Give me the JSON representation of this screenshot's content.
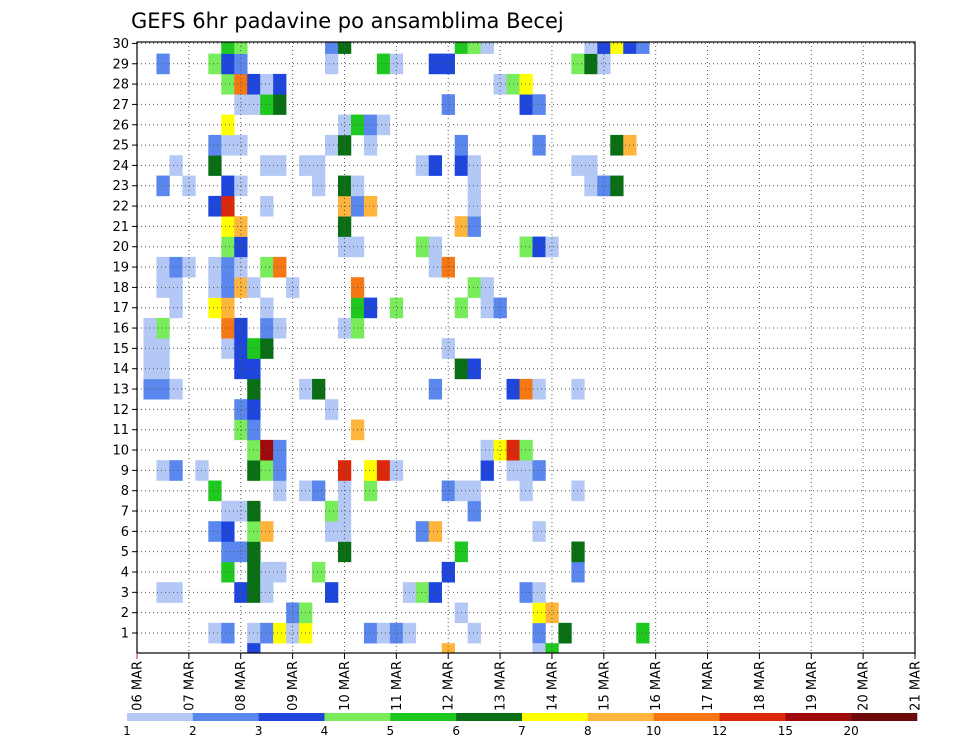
{
  "chart_data": {
    "type": "heatmap",
    "title": "GEFS 6hr padavine po ansamblima Becej",
    "x_ticks": [
      "06 MAR",
      "07 MAR",
      "08 MAR",
      "09 MAR",
      "10 MAR",
      "11 MAR",
      "12 MAR",
      "13 MAR",
      "14 MAR",
      "15 MAR",
      "16 MAR",
      "17 MAR",
      "18 MAR",
      "19 MAR",
      "20 MAR",
      "21 MAR"
    ],
    "y_ticks": [
      "1",
      "2",
      "3",
      "4",
      "5",
      "6",
      "7",
      "8",
      "9",
      "10",
      "11",
      "12",
      "13",
      "14",
      "15",
      "16",
      "17",
      "18",
      "19",
      "20",
      "21",
      "22",
      "23",
      "24",
      "25",
      "26",
      "27",
      "28",
      "29",
      "30"
    ],
    "grid": true,
    "color_scale": {
      "labels": [
        "1",
        "2",
        "3",
        "4",
        "5",
        "6",
        "7",
        "8",
        "10",
        "12",
        "15",
        "20"
      ],
      "colors": [
        "#b4c8f5",
        "#5a87ee",
        "#1e46dc",
        "#78ec5a",
        "#1ec81e",
        "#0a6e14",
        "#ffff00",
        "#ffb43c",
        "#f57814",
        "#dc280a",
        "#a00a0a",
        "#6e0a0a"
      ]
    },
    "cells": [
      [
        1,
        6,
        "#b4c8f5"
      ],
      [
        1,
        7,
        "#5a87ee"
      ],
      [
        1,
        9,
        "#b4c8f5"
      ],
      [
        1,
        10,
        "#5a87ee"
      ],
      [
        1,
        11,
        "#ffff00"
      ],
      [
        1,
        12,
        "#b4c8f5"
      ],
      [
        1,
        13,
        "#ffff00"
      ],
      [
        1,
        18,
        "#5a87ee"
      ],
      [
        1,
        19,
        "#b4c8f5"
      ],
      [
        1,
        20,
        "#5a87ee"
      ],
      [
        1,
        21,
        "#b4c8f5"
      ],
      [
        1,
        26,
        "#b4c8f5"
      ],
      [
        1,
        31,
        "#5a87ee"
      ],
      [
        1,
        33,
        "#0a6e14"
      ],
      [
        1,
        39,
        "#1ec81e"
      ],
      [
        2,
        12,
        "#5a87ee"
      ],
      [
        2,
        13,
        "#78ec5a"
      ],
      [
        2,
        25,
        "#b4c8f5"
      ],
      [
        2,
        31,
        "#ffff00"
      ],
      [
        2,
        32,
        "#ffb43c"
      ],
      [
        3,
        2,
        "#b4c8f5"
      ],
      [
        3,
        3,
        "#b4c8f5"
      ],
      [
        3,
        8,
        "#1e46dc"
      ],
      [
        3,
        9,
        "#0a6e14"
      ],
      [
        3,
        10,
        "#b4c8f5"
      ],
      [
        3,
        15,
        "#1e46dc"
      ],
      [
        3,
        21,
        "#b4c8f5"
      ],
      [
        3,
        22,
        "#78ec5a"
      ],
      [
        3,
        23,
        "#1e46dc"
      ],
      [
        3,
        30,
        "#5a87ee"
      ],
      [
        3,
        31,
        "#b4c8f5"
      ],
      [
        4,
        7,
        "#1ec81e"
      ],
      [
        4,
        9,
        "#0a6e14"
      ],
      [
        4,
        10,
        "#b4c8f5"
      ],
      [
        4,
        11,
        "#b4c8f5"
      ],
      [
        4,
        14,
        "#78ec5a"
      ],
      [
        4,
        24,
        "#1e46dc"
      ],
      [
        4,
        34,
        "#5a87ee"
      ],
      [
        5,
        7,
        "#5a87ee"
      ],
      [
        5,
        8,
        "#5a87ee"
      ],
      [
        5,
        9,
        "#0a6e14"
      ],
      [
        5,
        16,
        "#0a6e14"
      ],
      [
        5,
        25,
        "#1ec81e"
      ],
      [
        5,
        34,
        "#0a6e14"
      ],
      [
        6,
        6,
        "#5a87ee"
      ],
      [
        6,
        7,
        "#1e46dc"
      ],
      [
        6,
        9,
        "#78ec5a"
      ],
      [
        6,
        10,
        "#ffb43c"
      ],
      [
        6,
        15,
        "#b4c8f5"
      ],
      [
        6,
        16,
        "#b4c8f5"
      ],
      [
        6,
        22,
        "#5a87ee"
      ],
      [
        6,
        23,
        "#ffb43c"
      ],
      [
        6,
        31,
        "#b4c8f5"
      ],
      [
        7,
        7,
        "#b4c8f5"
      ],
      [
        7,
        8,
        "#b4c8f5"
      ],
      [
        7,
        9,
        "#0a6e14"
      ],
      [
        7,
        15,
        "#78ec5a"
      ],
      [
        7,
        16,
        "#b4c8f5"
      ],
      [
        7,
        26,
        "#5a87ee"
      ],
      [
        8,
        6,
        "#1ec81e"
      ],
      [
        8,
        11,
        "#b4c8f5"
      ],
      [
        8,
        13,
        "#b4c8f5"
      ],
      [
        8,
        14,
        "#5a87ee"
      ],
      [
        8,
        16,
        "#b4c8f5"
      ],
      [
        8,
        18,
        "#78ec5a"
      ],
      [
        8,
        24,
        "#5a87ee"
      ],
      [
        8,
        25,
        "#b4c8f5"
      ],
      [
        8,
        26,
        "#b4c8f5"
      ],
      [
        8,
        30,
        "#b4c8f5"
      ],
      [
        8,
        34,
        "#b4c8f5"
      ],
      [
        9,
        2,
        "#b4c8f5"
      ],
      [
        9,
        3,
        "#5a87ee"
      ],
      [
        9,
        5,
        "#b4c8f5"
      ],
      [
        9,
        9,
        "#0a6e14"
      ],
      [
        9,
        10,
        "#78ec5a"
      ],
      [
        9,
        11,
        "#5a87ee"
      ],
      [
        9,
        16,
        "#dc280a"
      ],
      [
        9,
        18,
        "#ffff00"
      ],
      [
        9,
        19,
        "#dc280a"
      ],
      [
        9,
        20,
        "#b4c8f5"
      ],
      [
        9,
        27,
        "#1e46dc"
      ],
      [
        9,
        29,
        "#b4c8f5"
      ],
      [
        9,
        30,
        "#b4c8f5"
      ],
      [
        9,
        31,
        "#5a87ee"
      ],
      [
        10,
        9,
        "#78ec5a"
      ],
      [
        10,
        10,
        "#a00a0a"
      ],
      [
        10,
        11,
        "#5a87ee"
      ],
      [
        10,
        27,
        "#b4c8f5"
      ],
      [
        10,
        28,
        "#ffff00"
      ],
      [
        10,
        29,
        "#dc280a"
      ],
      [
        10,
        30,
        "#78ec5a"
      ],
      [
        11,
        8,
        "#78ec5a"
      ],
      [
        11,
        9,
        "#5a87ee"
      ],
      [
        11,
        17,
        "#ffb43c"
      ],
      [
        12,
        8,
        "#5a87ee"
      ],
      [
        12,
        9,
        "#1e46dc"
      ],
      [
        12,
        15,
        "#b4c8f5"
      ],
      [
        13,
        1,
        "#5a87ee"
      ],
      [
        13,
        2,
        "#5a87ee"
      ],
      [
        13,
        3,
        "#b4c8f5"
      ],
      [
        13,
        9,
        "#0a6e14"
      ],
      [
        13,
        13,
        "#b4c8f5"
      ],
      [
        13,
        14,
        "#0a6e14"
      ],
      [
        13,
        23,
        "#5a87ee"
      ],
      [
        13,
        29,
        "#1e46dc"
      ],
      [
        13,
        30,
        "#f57814"
      ],
      [
        13,
        31,
        "#b4c8f5"
      ],
      [
        13,
        34,
        "#b4c8f5"
      ],
      [
        14,
        1,
        "#b4c8f5"
      ],
      [
        14,
        2,
        "#b4c8f5"
      ],
      [
        14,
        8,
        "#1e46dc"
      ],
      [
        14,
        9,
        "#1e46dc"
      ],
      [
        14,
        25,
        "#0a6e14"
      ],
      [
        14,
        26,
        "#1e46dc"
      ],
      [
        15,
        1,
        "#b4c8f5"
      ],
      [
        15,
        2,
        "#b4c8f5"
      ],
      [
        15,
        7,
        "#b4c8f5"
      ],
      [
        15,
        8,
        "#1e46dc"
      ],
      [
        15,
        9,
        "#1ec81e"
      ],
      [
        15,
        10,
        "#0a6e14"
      ],
      [
        15,
        24,
        "#b4c8f5"
      ],
      [
        16,
        1,
        "#b4c8f5"
      ],
      [
        16,
        2,
        "#78ec5a"
      ],
      [
        16,
        7,
        "#f57814"
      ],
      [
        16,
        8,
        "#1e46dc"
      ],
      [
        16,
        10,
        "#5a87ee"
      ],
      [
        16,
        11,
        "#b4c8f5"
      ],
      [
        16,
        16,
        "#b4c8f5"
      ],
      [
        16,
        17,
        "#78ec5a"
      ],
      [
        17,
        3,
        "#b4c8f5"
      ],
      [
        17,
        6,
        "#ffff00"
      ],
      [
        17,
        7,
        "#ffb43c"
      ],
      [
        17,
        10,
        "#b4c8f5"
      ],
      [
        17,
        17,
        "#1ec81e"
      ],
      [
        17,
        18,
        "#1e46dc"
      ],
      [
        17,
        20,
        "#78ec5a"
      ],
      [
        17,
        25,
        "#78ec5a"
      ],
      [
        17,
        27,
        "#b4c8f5"
      ],
      [
        17,
        28,
        "#5a87ee"
      ],
      [
        18,
        2,
        "#b4c8f5"
      ],
      [
        18,
        3,
        "#b4c8f5"
      ],
      [
        18,
        6,
        "#b4c8f5"
      ],
      [
        18,
        7,
        "#5a87ee"
      ],
      [
        18,
        8,
        "#ffb43c"
      ],
      [
        18,
        9,
        "#b4c8f5"
      ],
      [
        18,
        12,
        "#b4c8f5"
      ],
      [
        18,
        17,
        "#f57814"
      ],
      [
        18,
        26,
        "#78ec5a"
      ],
      [
        18,
        27,
        "#b4c8f5"
      ],
      [
        19,
        2,
        "#b4c8f5"
      ],
      [
        19,
        3,
        "#5a87ee"
      ],
      [
        19,
        4,
        "#b4c8f5"
      ],
      [
        19,
        6,
        "#b4c8f5"
      ],
      [
        19,
        7,
        "#5a87ee"
      ],
      [
        19,
        8,
        "#b4c8f5"
      ],
      [
        19,
        10,
        "#78ec5a"
      ],
      [
        19,
        11,
        "#f57814"
      ],
      [
        19,
        23,
        "#b4c8f5"
      ],
      [
        19,
        24,
        "#f57814"
      ],
      [
        20,
        7,
        "#78ec5a"
      ],
      [
        20,
        8,
        "#1e46dc"
      ],
      [
        20,
        16,
        "#b4c8f5"
      ],
      [
        20,
        17,
        "#b4c8f5"
      ],
      [
        20,
        22,
        "#78ec5a"
      ],
      [
        20,
        23,
        "#b4c8f5"
      ],
      [
        20,
        30,
        "#78ec5a"
      ],
      [
        20,
        31,
        "#1e46dc"
      ],
      [
        20,
        32,
        "#b4c8f5"
      ],
      [
        21,
        7,
        "#ffff00"
      ],
      [
        21,
        8,
        "#ffb43c"
      ],
      [
        21,
        16,
        "#0a6e14"
      ],
      [
        21,
        25,
        "#ffb43c"
      ],
      [
        21,
        26,
        "#5a87ee"
      ],
      [
        22,
        6,
        "#1e46dc"
      ],
      [
        22,
        7,
        "#dc280a"
      ],
      [
        22,
        10,
        "#b4c8f5"
      ],
      [
        22,
        16,
        "#ffb43c"
      ],
      [
        22,
        17,
        "#5a87ee"
      ],
      [
        22,
        18,
        "#ffb43c"
      ],
      [
        22,
        26,
        "#b4c8f5"
      ],
      [
        23,
        2,
        "#5a87ee"
      ],
      [
        23,
        4,
        "#b4c8f5"
      ],
      [
        23,
        7,
        "#1e46dc"
      ],
      [
        23,
        8,
        "#b4c8f5"
      ],
      [
        23,
        14,
        "#b4c8f5"
      ],
      [
        23,
        16,
        "#0a6e14"
      ],
      [
        23,
        17,
        "#b4c8f5"
      ],
      [
        23,
        26,
        "#b4c8f5"
      ],
      [
        23,
        35,
        "#b4c8f5"
      ],
      [
        23,
        36,
        "#5a87ee"
      ],
      [
        23,
        37,
        "#0a6e14"
      ],
      [
        24,
        3,
        "#b4c8f5"
      ],
      [
        24,
        6,
        "#0a6e14"
      ],
      [
        24,
        10,
        "#b4c8f5"
      ],
      [
        24,
        11,
        "#b4c8f5"
      ],
      [
        24,
        13,
        "#b4c8f5"
      ],
      [
        24,
        14,
        "#b4c8f5"
      ],
      [
        24,
        22,
        "#b4c8f5"
      ],
      [
        24,
        23,
        "#1e46dc"
      ],
      [
        24,
        25,
        "#1e46dc"
      ],
      [
        24,
        26,
        "#b4c8f5"
      ],
      [
        24,
        34,
        "#b4c8f5"
      ],
      [
        24,
        35,
        "#b4c8f5"
      ],
      [
        25,
        6,
        "#5a87ee"
      ],
      [
        25,
        7,
        "#b4c8f5"
      ],
      [
        25,
        8,
        "#b4c8f5"
      ],
      [
        25,
        15,
        "#b4c8f5"
      ],
      [
        25,
        16,
        "#0a6e14"
      ],
      [
        25,
        18,
        "#b4c8f5"
      ],
      [
        25,
        25,
        "#5a87ee"
      ],
      [
        25,
        31,
        "#5a87ee"
      ],
      [
        25,
        37,
        "#0a6e14"
      ],
      [
        25,
        38,
        "#ffb43c"
      ],
      [
        26,
        7,
        "#ffff00"
      ],
      [
        26,
        16,
        "#b4c8f5"
      ],
      [
        26,
        17,
        "#1ec81e"
      ],
      [
        26,
        18,
        "#5a87ee"
      ],
      [
        26,
        19,
        "#b4c8f5"
      ],
      [
        27,
        8,
        "#b4c8f5"
      ],
      [
        27,
        9,
        "#b4c8f5"
      ],
      [
        27,
        10,
        "#1ec81e"
      ],
      [
        27,
        11,
        "#0a6e14"
      ],
      [
        27,
        24,
        "#5a87ee"
      ],
      [
        27,
        30,
        "#1e46dc"
      ],
      [
        27,
        31,
        "#5a87ee"
      ],
      [
        28,
        7,
        "#78ec5a"
      ],
      [
        28,
        8,
        "#f57814"
      ],
      [
        28,
        9,
        "#1e46dc"
      ],
      [
        28,
        10,
        "#b4c8f5"
      ],
      [
        28,
        11,
        "#1e46dc"
      ],
      [
        28,
        28,
        "#b4c8f5"
      ],
      [
        28,
        29,
        "#78ec5a"
      ],
      [
        28,
        30,
        "#ffff00"
      ],
      [
        29,
        2,
        "#5a87ee"
      ],
      [
        29,
        6,
        "#78ec5a"
      ],
      [
        29,
        7,
        "#1e46dc"
      ],
      [
        29,
        8,
        "#5a87ee"
      ],
      [
        29,
        15,
        "#b4c8f5"
      ],
      [
        29,
        19,
        "#1ec81e"
      ],
      [
        29,
        20,
        "#b4c8f5"
      ],
      [
        29,
        23,
        "#1e46dc"
      ],
      [
        29,
        24,
        "#1e46dc"
      ],
      [
        29,
        34,
        "#78ec5a"
      ],
      [
        29,
        35,
        "#0a6e14"
      ],
      [
        29,
        36,
        "#b4c8f5"
      ],
      [
        30,
        7,
        "#1ec81e"
      ],
      [
        30,
        8,
        "#78ec5a"
      ],
      [
        30,
        15,
        "#5a87ee"
      ],
      [
        30,
        16,
        "#0a6e14"
      ],
      [
        30,
        25,
        "#1ec81e"
      ],
      [
        30,
        26,
        "#78ec5a"
      ],
      [
        30,
        27,
        "#b4c8f5"
      ],
      [
        30,
        35,
        "#b4c8f5"
      ],
      [
        30,
        36,
        "#1e46dc"
      ],
      [
        30,
        37,
        "#ffff00"
      ],
      [
        30,
        38,
        "#1e46dc"
      ],
      [
        30,
        39,
        "#5a87ee"
      ],
      [
        0,
        9,
        "#1e46dc"
      ],
      [
        0,
        24,
        "#ffb43c"
      ],
      [
        0,
        31,
        "#b4c8f5"
      ],
      [
        0,
        32,
        "#1ec81e"
      ]
    ]
  }
}
